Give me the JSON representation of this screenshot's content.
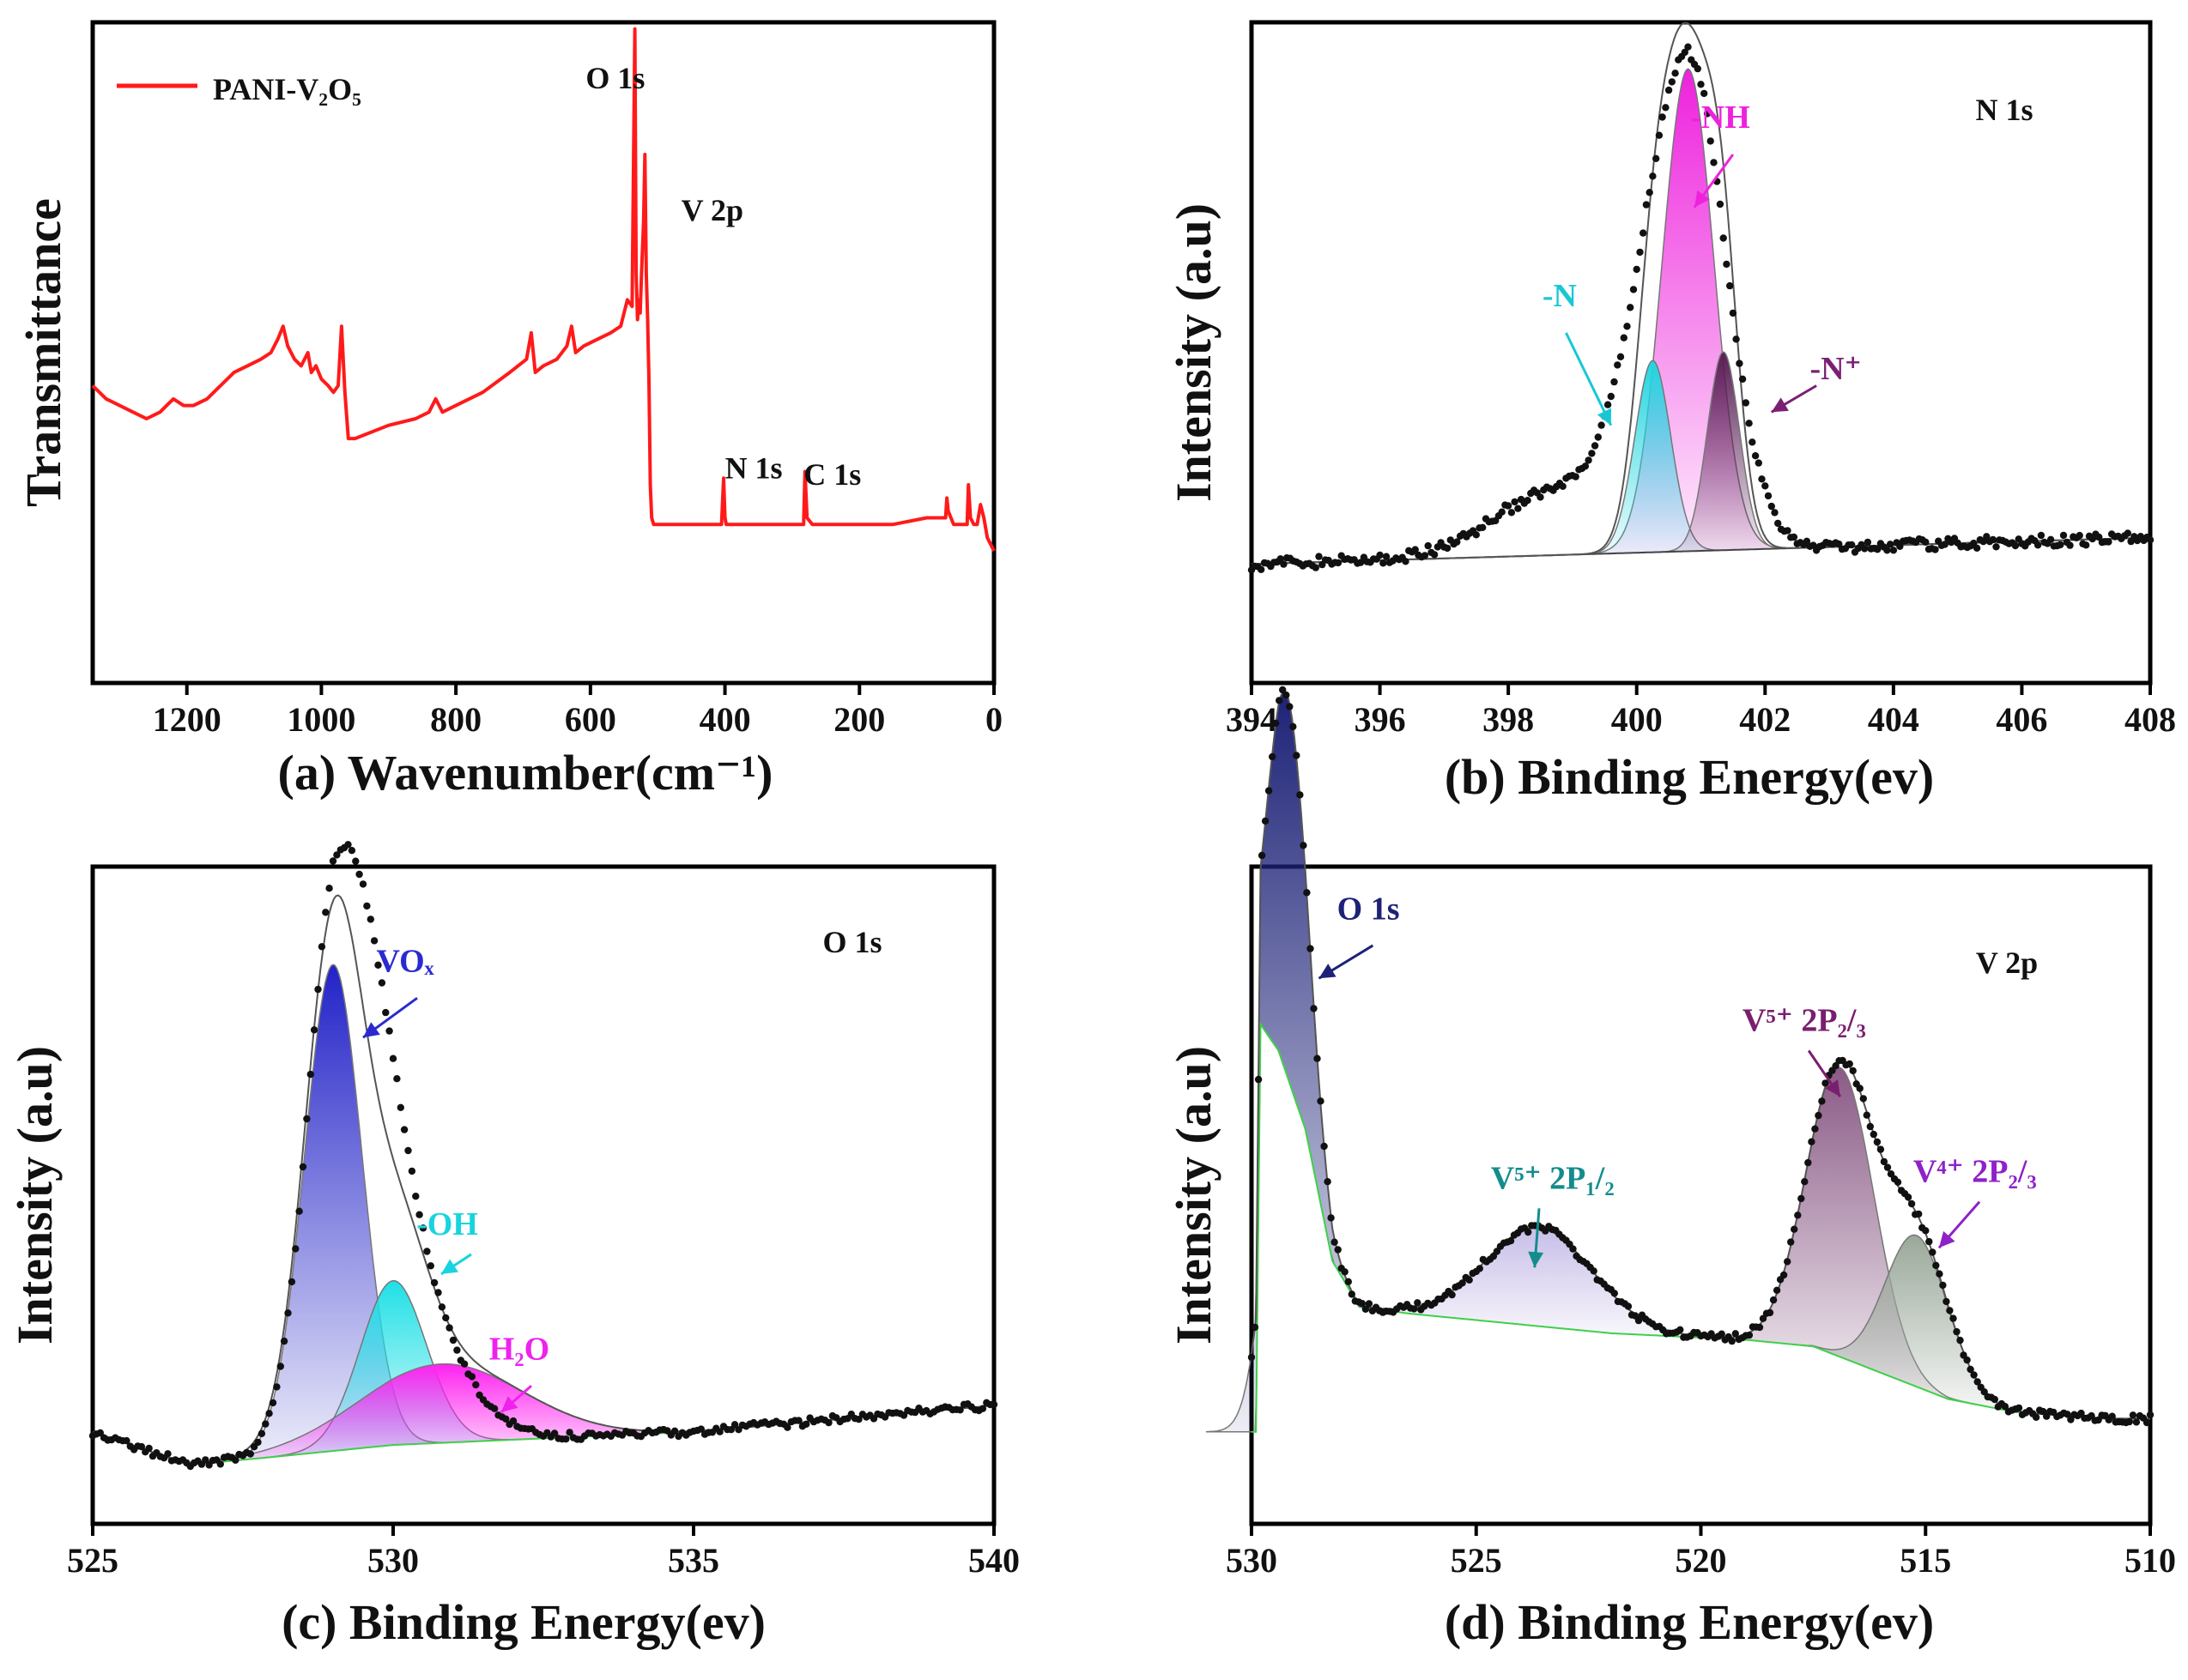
{
  "colors": {
    "survey_line": "#ff1a1a",
    "points": "#111111",
    "envelope": "#555555",
    "baseline": "#3fd14a",
    "nh": "#ee22dd",
    "nh_label": "#ee22dd",
    "n_minus": "#22d5e0",
    "n_minus_label": "#19c7d4",
    "n_plus": "#5a1f55",
    "n_plus_label": "#7b1f74",
    "vox": "#2222c8",
    "vox_label": "#2a2ad0",
    "oh": "#1fe0e6",
    "oh_label": "#18d4de",
    "h2o": "#ff22f0",
    "h2o_label": "#ee22ee",
    "o1s_d": "#1d2277",
    "o1s_d_label": "#1d2277",
    "v5_12": "#c3b8e6",
    "v5_12_label": "#148c8c",
    "v5_23": "#8a5a86",
    "v5_23_label": "#7a1e6e",
    "v4_23": "#9aa89a",
    "v4_23_label": "#8e22c8"
  },
  "chart_data": [
    {
      "id": "a",
      "type": "line",
      "caption": "(a) Wavenumber(cm⁻¹)",
      "ylabel": "Transmittance",
      "xlim": [
        1340,
        0
      ],
      "ylim": [
        0,
        100
      ],
      "xticks": [
        1200,
        1000,
        800,
        600,
        400,
        200,
        0
      ],
      "legend": {
        "name": "PANI-V₂O₅"
      },
      "annotations": [
        {
          "text": "O 1s",
          "x": 607,
          "y": 90
        },
        {
          "text": "V 2p",
          "x": 465,
          "y": 70
        },
        {
          "text": "N 1s",
          "x": 400,
          "y": 31
        },
        {
          "text": "C 1s",
          "x": 283,
          "y": 30
        }
      ],
      "series": [
        {
          "name": "PANI-V₂O₅",
          "x": [
            1340,
            1320,
            1300,
            1280,
            1260,
            1240,
            1230,
            1220,
            1205,
            1190,
            1170,
            1150,
            1130,
            1110,
            1090,
            1075,
            1065,
            1057,
            1050,
            1040,
            1030,
            1020,
            1015,
            1008,
            1000,
            990,
            982,
            975,
            970,
            965,
            960,
            950,
            900,
            860,
            840,
            830,
            820,
            800,
            760,
            720,
            695,
            688,
            682,
            670,
            650,
            635,
            628,
            622,
            610,
            590,
            570,
            555,
            545,
            538,
            534,
            532,
            530,
            528,
            526,
            524,
            521,
            519,
            517,
            515,
            513,
            511,
            509,
            506,
            503,
            500,
            480,
            450,
            420,
            405,
            402,
            400,
            398,
            394,
            380,
            340,
            300,
            290,
            285,
            283,
            281,
            278,
            270,
            250,
            200,
            150,
            100,
            80,
            72,
            70,
            68,
            60,
            50,
            45,
            42,
            40,
            38,
            35,
            30,
            25,
            20,
            15,
            10,
            5,
            0
          ],
          "y": [
            45,
            43,
            42,
            41,
            40,
            41,
            42,
            43,
            42,
            42,
            43,
            45,
            47,
            48,
            49,
            50,
            52,
            54,
            51,
            49,
            48,
            50,
            47,
            48,
            46,
            45,
            44,
            45,
            54,
            44,
            37,
            37,
            39,
            40,
            41,
            43,
            41,
            42,
            44,
            47,
            49,
            53,
            47,
            48,
            49,
            51,
            54,
            50,
            51,
            52,
            53,
            54,
            58,
            57,
            99,
            62,
            55,
            58,
            56,
            62,
            70,
            80,
            62,
            55,
            46,
            30,
            25,
            24,
            24,
            24,
            24,
            24,
            24,
            24,
            31,
            25,
            24,
            24,
            24,
            24,
            24,
            24,
            24,
            24,
            32,
            25,
            24,
            24,
            24,
            24,
            25,
            25,
            25,
            28,
            26,
            24,
            24,
            24,
            24,
            24,
            30,
            25,
            24,
            24,
            27,
            25,
            22,
            21,
            20
          ]
        }
      ]
    },
    {
      "id": "b",
      "type": "scatter+fit",
      "caption": "(b) Binding Energy(ev)",
      "ylabel": "Intensity (a.u)",
      "title": "N 1s",
      "xlim": [
        394,
        408
      ],
      "ylim": [
        0,
        100
      ],
      "xticks": [
        394,
        396,
        398,
        400,
        402,
        404,
        406,
        408
      ],
      "baseline": [
        [
          394,
          18
        ],
        [
          408,
          22
        ]
      ],
      "components": [
        {
          "name": "-NH",
          "center": 400.8,
          "height": 73,
          "sigma": 0.4,
          "color_key": "nh",
          "label_color_key": "nh_label",
          "label_pos": [
            401.3,
            84
          ],
          "arrow_from": [
            401.5,
            80
          ],
          "arrow_to": [
            400.9,
            72
          ]
        },
        {
          "name": "-N",
          "center": 400.25,
          "height": 29,
          "sigma": 0.28,
          "color_key": "n_minus",
          "label_color_key": "n_minus_label",
          "label_pos": [
            398.8,
            57
          ],
          "arrow_from": [
            398.9,
            53
          ],
          "arrow_to": [
            399.6,
            39
          ]
        },
        {
          "name": "-N⁺",
          "center": 401.35,
          "height": 30,
          "sigma": 0.25,
          "color_key": "n_plus",
          "label_color_key": "n_plus_label",
          "label_pos": [
            403.1,
            46
          ],
          "arrow_from": [
            402.8,
            45
          ],
          "arrow_to": [
            402.1,
            41
          ]
        }
      ],
      "measured": {
        "center": 400.8,
        "height": 75,
        "sigma_left": 0.72,
        "sigma_right": 0.58,
        "shoulder_center": 398.6,
        "shoulder_height": 9,
        "shoulder_sigma": 0.9,
        "noise": 0.9,
        "samples": 280
      }
    },
    {
      "id": "c",
      "type": "scatter+fit",
      "caption": "(c) Binding Energy(ev)",
      "ylabel": "Intensity (a.u)",
      "title": "O 1s",
      "xlim": [
        525,
        540
      ],
      "ylim": [
        0,
        100
      ],
      "xticks": [
        525,
        530,
        535,
        540
      ],
      "baseline": [
        [
          525,
          14
        ],
        [
          526.6,
          9
        ],
        [
          527.8,
          10
        ],
        [
          530,
          12
        ],
        [
          535,
          14
        ],
        [
          540,
          18
        ]
      ],
      "components": [
        {
          "name": "VOₓ",
          "center": 529.0,
          "height": 74,
          "sigma": 0.48,
          "color_key": "vox",
          "label_color_key": "vox_label",
          "label_pos": [
            530.2,
            84
          ],
          "arrow_from": [
            530.4,
            80
          ],
          "arrow_to": [
            529.5,
            74
          ]
        },
        {
          "name": "-OH",
          "center": 530.0,
          "height": 25,
          "sigma": 0.55,
          "color_key": "oh",
          "label_color_key": "oh_label",
          "label_pos": [
            530.9,
            44
          ],
          "arrow_from": [
            531.3,
            41
          ],
          "arrow_to": [
            530.8,
            38
          ]
        },
        {
          "name": "H₂O",
          "center": 530.8,
          "height": 12,
          "sigma": 1.35,
          "color_key": "h2o",
          "label_color_key": "h2o_label",
          "label_pos": [
            532.1,
            25
          ],
          "arrow_from": [
            532.3,
            21
          ],
          "arrow_to": [
            531.8,
            17
          ]
        }
      ],
      "measured": {
        "center": 529.1,
        "height": 86,
        "sigma_left": 0.5,
        "sigma_right": 0.8,
        "shoulder_center": 530.3,
        "shoulder_height": 14,
        "shoulder_sigma": 0.9,
        "noise": 0.6,
        "samples": 240
      }
    },
    {
      "id": "d",
      "type": "scatter+fit",
      "caption": "(d) Binding Energy(ev)",
      "ylabel": "Intensity (a.u)",
      "title": "V 2p",
      "xlim": [
        530,
        510
      ],
      "ylim": [
        0,
        100
      ],
      "xticks": [
        530,
        525,
        520,
        515,
        510
      ],
      "baseline": [
        [
          529.9,
          14
        ],
        [
          529.8,
          76
        ],
        [
          529.4,
          72
        ],
        [
          528.8,
          60
        ],
        [
          528.2,
          40
        ],
        [
          527.6,
          33
        ],
        [
          526.5,
          32
        ],
        [
          525,
          31
        ],
        [
          522,
          29
        ],
        [
          519,
          28
        ],
        [
          517.5,
          27
        ],
        [
          516,
          23
        ],
        [
          514.5,
          19
        ],
        [
          513,
          17
        ],
        [
          511,
          16
        ],
        [
          510,
          16
        ]
      ],
      "components": [
        {
          "name": "O 1s",
          "center": 529.2,
          "height": 58,
          "sigma": 0.45,
          "color_key": "o1s_d",
          "label_color_key": "o1s_d_label",
          "label_pos": [
            527.4,
            92
          ],
          "arrow_from": [
            527.3,
            88
          ],
          "arrow_to": [
            528.5,
            83
          ]
        },
        {
          "name": "V⁵⁺ 2P₁/₂",
          "center": 523.6,
          "height": 15,
          "sigma": 1.2,
          "color_key": "v5_12",
          "label_color_key": "v5_12_label",
          "label_pos": [
            523.3,
            51
          ],
          "arrow_from": [
            523.6,
            48
          ],
          "arrow_to": [
            523.7,
            39
          ]
        },
        {
          "name": "V⁵⁺ 2P₂/₃",
          "center": 516.9,
          "height": 44,
          "sigma": 0.75,
          "color_key": "v5_23",
          "label_color_key": "v5_23_label",
          "label_pos": [
            517.7,
            75
          ],
          "arrow_from": [
            517.6,
            72
          ],
          "arrow_to": [
            516.9,
            65
          ]
        },
        {
          "name": "V⁴⁺ 2P₂/₃",
          "center": 515.2,
          "height": 23,
          "sigma": 0.7,
          "color_key": "v4_23",
          "label_color_key": "v4_23_label",
          "label_pos": [
            513.9,
            52
          ],
          "arrow_from": [
            513.8,
            49
          ],
          "arrow_to": [
            514.7,
            42
          ]
        }
      ],
      "measured": {
        "center": 529.2,
        "height": 0,
        "sigma_left": 0.5,
        "sigma_right": 0.5,
        "shoulder_center": 0,
        "shoulder_height": 0,
        "shoulder_sigma": 1,
        "noise": 0.6,
        "samples": 260
      }
    }
  ]
}
